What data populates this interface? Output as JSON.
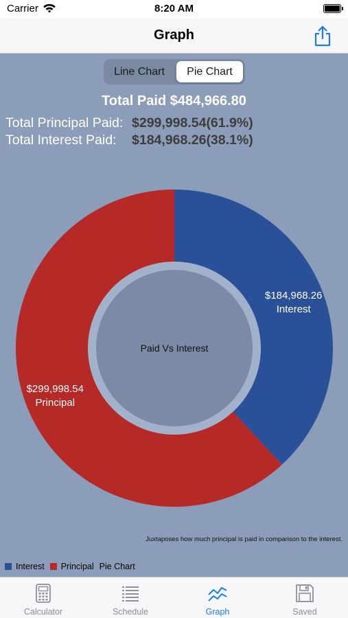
{
  "status": {
    "carrier": "Carrier",
    "time": "8:20 AM"
  },
  "nav": {
    "title": "Graph"
  },
  "segments": {
    "line": "Line Chart",
    "pie": "Pie Chart",
    "selected": "pie"
  },
  "summary": {
    "total_paid": "Total Paid $484,966.80",
    "principal_label": "Total Principal Paid:",
    "principal_value": "$299,998.54(61.9%)",
    "interest_label": "Total Interest Paid:",
    "interest_value": "$184,968.26(38.1%)"
  },
  "chart_data": {
    "type": "pie",
    "center_text": "Paid Vs Interest",
    "description": "Juxtaposes how much principal is paid in comparison to the interest.",
    "legend_label": "Pie Chart",
    "slices": [
      {
        "name": "Interest",
        "value": 184968.26,
        "label": "$184,968.26",
        "color": "#2a5197"
      },
      {
        "name": "Principal",
        "value": 299998.54,
        "label": "$299,998.54",
        "color": "#b52a26"
      }
    ]
  },
  "tabs": [
    {
      "label": "Calculator",
      "icon": "calculator-icon",
      "active": false
    },
    {
      "label": "Schedule",
      "icon": "list-icon",
      "active": false
    },
    {
      "label": "Graph",
      "icon": "chart-line-icon",
      "active": true
    },
    {
      "label": "Saved",
      "icon": "save-icon",
      "active": false
    }
  ]
}
